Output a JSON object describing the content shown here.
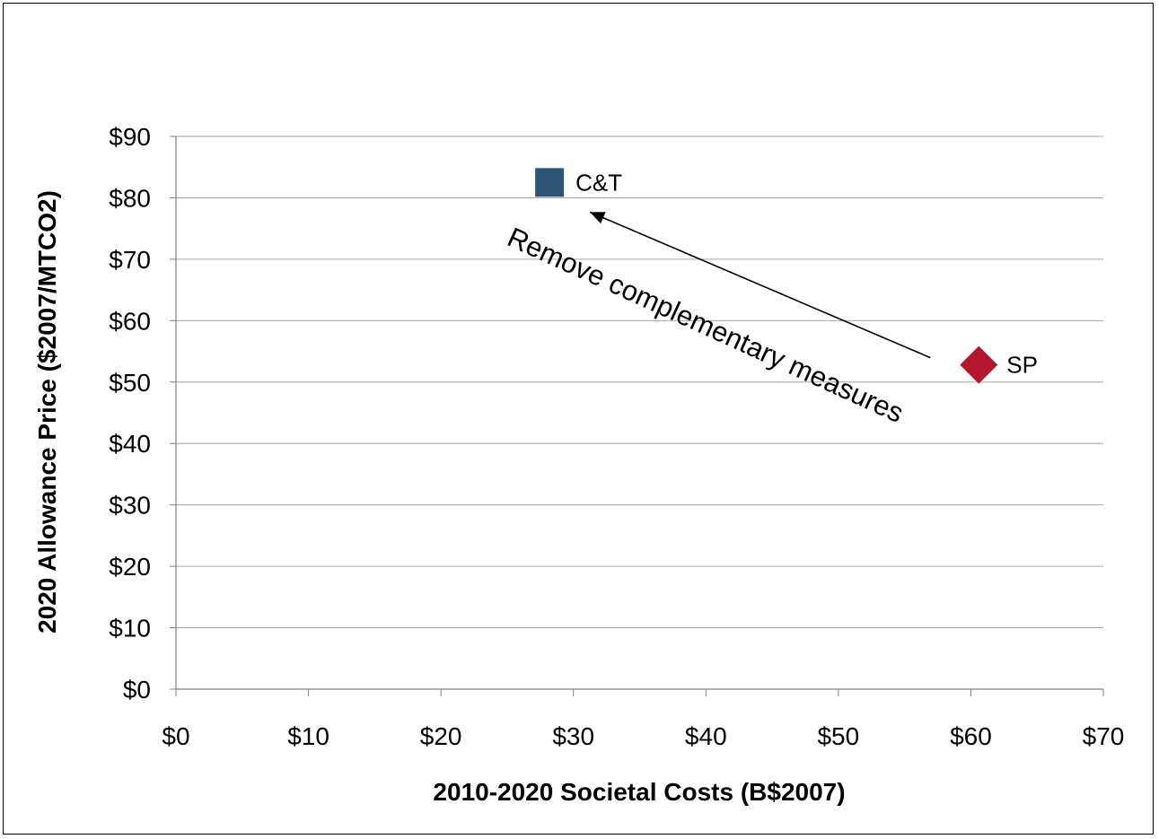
{
  "chart_data": {
    "type": "scatter",
    "xlabel": "2010-2020 Societal Costs (B$2007)",
    "ylabel": "2020 Allowance Price ($2007/MTCO2)",
    "xlim": [
      0,
      70
    ],
    "ylim": [
      0,
      90
    ],
    "x_ticks": [
      "$0",
      "$10",
      "$20",
      "$30",
      "$40",
      "$50",
      "$60",
      "$70"
    ],
    "y_ticks": [
      "$0",
      "$10",
      "$20",
      "$30",
      "$40",
      "$50",
      "$60",
      "$70",
      "$80",
      "$90"
    ],
    "grid": "horizontal",
    "points": [
      {
        "label": "C&T",
        "x": 28.2,
        "y": 82.5,
        "marker": "square",
        "color": "#2e5573"
      },
      {
        "label": "SP",
        "x": 60.6,
        "y": 52.8,
        "marker": "diamond",
        "color": "#b5162f"
      }
    ],
    "annotations": [
      {
        "text": "Remove complementary measures",
        "from": "SP",
        "to": "C&T"
      }
    ]
  }
}
